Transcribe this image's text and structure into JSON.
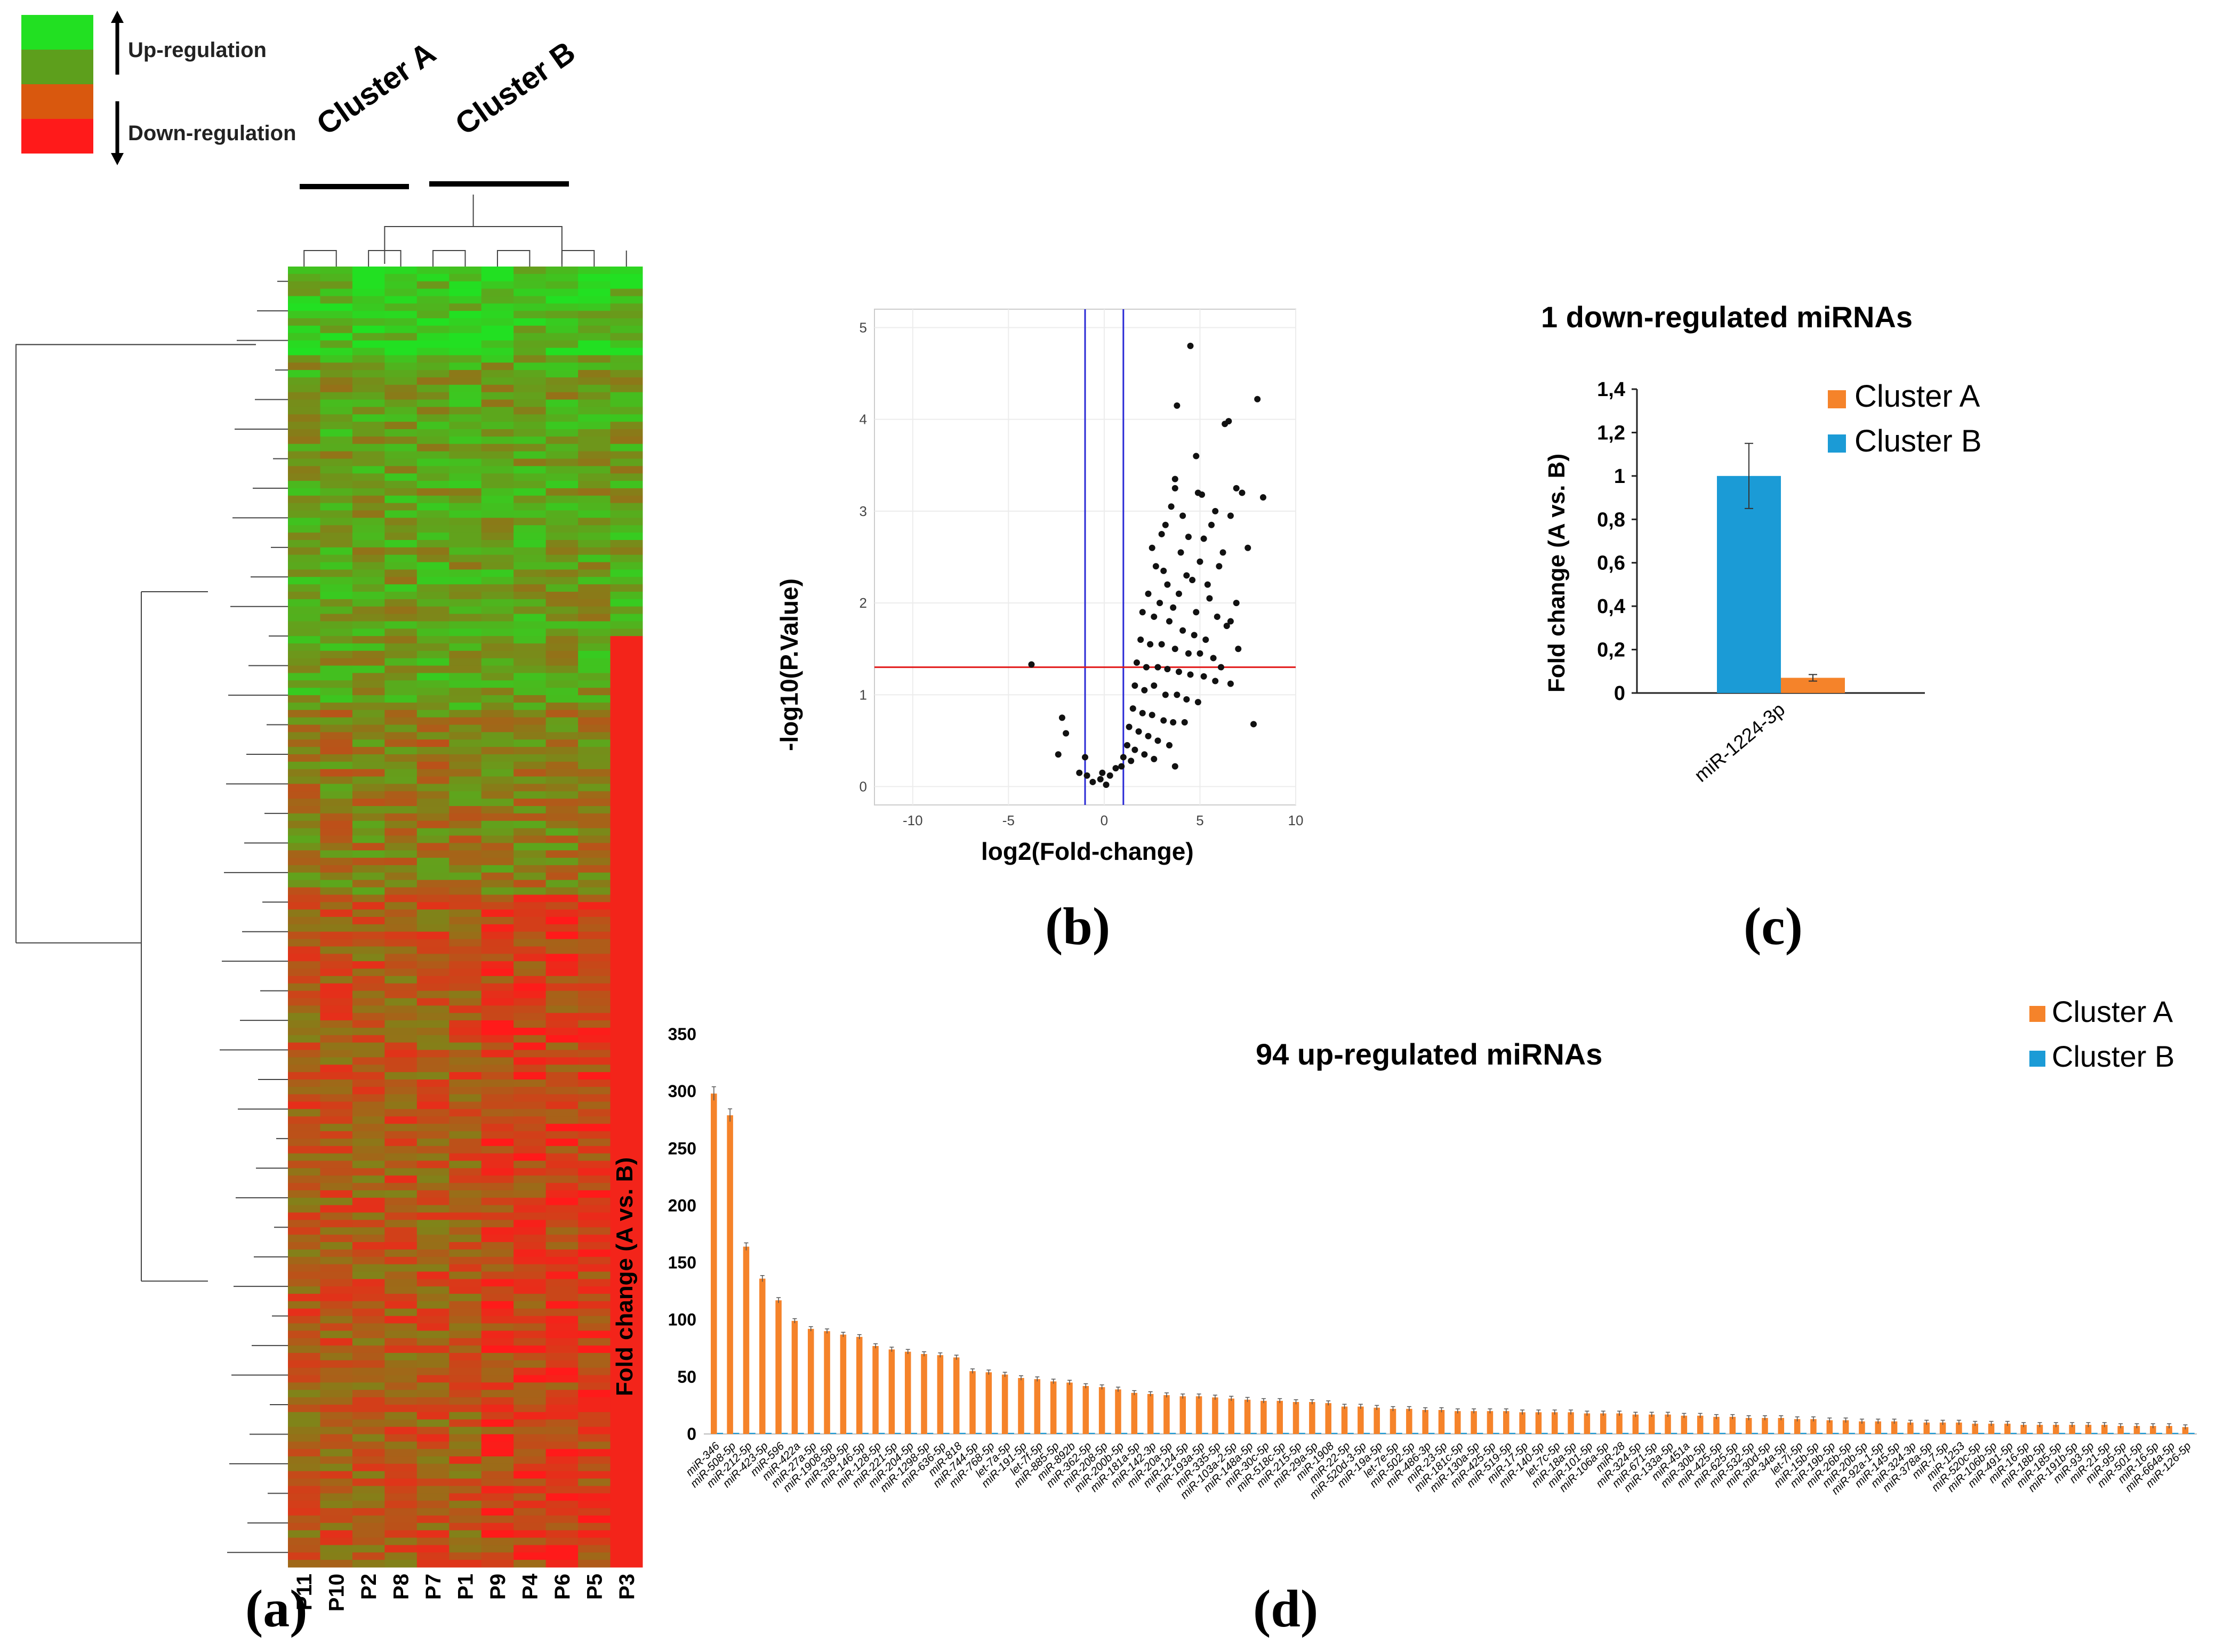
{
  "panel_labels": {
    "a": "(a)",
    "b": "(b)",
    "c": "(c)",
    "d": "(d)"
  },
  "heatmap_legend": {
    "up_label": "Up-regulation",
    "down_label": "Down-regulation",
    "colors": [
      "#22e022",
      "#5d9f1c",
      "#d9580e",
      "#ff1a1a"
    ]
  },
  "heatmap": {
    "cluster_labels": [
      "Cluster A",
      "Cluster B"
    ],
    "samples": [
      "P11",
      "P10",
      "P2",
      "P8",
      "P7",
      "P1",
      "P9",
      "P4",
      "P6",
      "P5",
      "P3"
    ],
    "row_count": 176,
    "colors": {
      "up": "#22e022",
      "mid": "#8a7a18",
      "down": "#ff1a1a"
    }
  },
  "colors": {
    "cluster_a": "#f5832a",
    "cluster_b": "#1b9bd6",
    "threshold_h": "#e21b1b",
    "threshold_v": "#2a2ad6",
    "points": "#111111"
  },
  "chart_data": [
    {
      "panel": "b",
      "type": "scatter",
      "title": "",
      "xlabel": "log2(Fold-change)",
      "ylabel": "-log10(P.Value)",
      "xlim": [
        -12,
        10
      ],
      "ylim": [
        -0.2,
        5.2
      ],
      "xticks": [
        -10,
        -5,
        0,
        5,
        10
      ],
      "yticks": [
        0,
        1,
        2,
        3,
        4,
        5
      ],
      "grid": true,
      "thresholds": {
        "x": [
          -1,
          1
        ],
        "y": 1.3
      },
      "points": [
        [
          4.5,
          4.8
        ],
        [
          8.0,
          4.22
        ],
        [
          6.5,
          3.98
        ],
        [
          6.3,
          3.95
        ],
        [
          3.8,
          4.15
        ],
        [
          4.8,
          3.6
        ],
        [
          3.7,
          3.35
        ],
        [
          3.7,
          3.25
        ],
        [
          4.9,
          3.2
        ],
        [
          5.1,
          3.18
        ],
        [
          7.2,
          3.2
        ],
        [
          8.3,
          3.15
        ],
        [
          6.9,
          3.25
        ],
        [
          3.5,
          3.05
        ],
        [
          4.1,
          2.95
        ],
        [
          5.8,
          3.0
        ],
        [
          6.6,
          2.95
        ],
        [
          7.5,
          2.6
        ],
        [
          6.2,
          2.55
        ],
        [
          3.2,
          2.85
        ],
        [
          4.4,
          2.72
        ],
        [
          5.2,
          2.7
        ],
        [
          6.0,
          2.4
        ],
        [
          4.0,
          2.55
        ],
        [
          2.5,
          2.6
        ],
        [
          3.1,
          2.35
        ],
        [
          4.6,
          2.25
        ],
        [
          5.4,
          2.2
        ],
        [
          6.9,
          2.0
        ],
        [
          2.7,
          2.4
        ],
        [
          3.3,
          2.2
        ],
        [
          3.9,
          2.1
        ],
        [
          4.3,
          2.3
        ],
        [
          5.5,
          2.05
        ],
        [
          2.3,
          2.1
        ],
        [
          2.9,
          2.0
        ],
        [
          3.6,
          1.95
        ],
        [
          4.8,
          1.9
        ],
        [
          5.9,
          1.85
        ],
        [
          6.4,
          1.75
        ],
        [
          6.6,
          1.8
        ],
        [
          7.0,
          1.5
        ],
        [
          2.0,
          1.9
        ],
        [
          2.6,
          1.85
        ],
        [
          3.4,
          1.8
        ],
        [
          4.1,
          1.7
        ],
        [
          4.7,
          1.65
        ],
        [
          5.3,
          1.6
        ],
        [
          1.9,
          1.6
        ],
        [
          2.4,
          1.55
        ],
        [
          3.0,
          1.55
        ],
        [
          3.7,
          1.5
        ],
        [
          4.4,
          1.45
        ],
        [
          5.0,
          1.45
        ],
        [
          5.7,
          1.4
        ],
        [
          6.1,
          1.3
        ],
        [
          1.7,
          1.35
        ],
        [
          2.2,
          1.3
        ],
        [
          2.8,
          1.3
        ],
        [
          3.3,
          1.28
        ],
        [
          3.9,
          1.25
        ],
        [
          4.5,
          1.22
        ],
        [
          5.2,
          1.2
        ],
        [
          5.8,
          1.15
        ],
        [
          1.6,
          1.1
        ],
        [
          2.1,
          1.05
        ],
        [
          2.6,
          1.1
        ],
        [
          3.2,
          1.0
        ],
        [
          3.8,
          1.0
        ],
        [
          4.3,
          0.95
        ],
        [
          4.9,
          0.92
        ],
        [
          1.5,
          0.85
        ],
        [
          2.0,
          0.8
        ],
        [
          2.5,
          0.78
        ],
        [
          3.1,
          0.72
        ],
        [
          3.6,
          0.7
        ],
        [
          4.2,
          0.7
        ],
        [
          1.3,
          0.65
        ],
        [
          1.8,
          0.6
        ],
        [
          2.3,
          0.55
        ],
        [
          2.8,
          0.5
        ],
        [
          3.4,
          0.45
        ],
        [
          1.2,
          0.45
        ],
        [
          1.6,
          0.4
        ],
        [
          2.1,
          0.35
        ],
        [
          1.0,
          0.32
        ],
        [
          1.4,
          0.28
        ],
        [
          0.9,
          0.22
        ],
        [
          2.6,
          0.3
        ],
        [
          3.7,
          0.22
        ],
        [
          6.6,
          1.12
        ],
        [
          7.8,
          0.68
        ],
        [
          -3.8,
          1.33
        ],
        [
          -2.2,
          0.75
        ],
        [
          -2.0,
          0.58
        ],
        [
          -2.4,
          0.35
        ],
        [
          -1.3,
          0.15
        ],
        [
          -1.0,
          0.32
        ],
        [
          -0.9,
          0.12
        ],
        [
          -0.6,
          0.05
        ],
        [
          -0.2,
          0.08
        ],
        [
          0.1,
          0.02
        ],
        [
          0.3,
          0.12
        ],
        [
          0.6,
          0.2
        ],
        [
          -0.1,
          0.15
        ],
        [
          5.0,
          2.45
        ],
        [
          5.6,
          2.85
        ],
        [
          3.0,
          2.75
        ]
      ]
    },
    {
      "panel": "c",
      "type": "bar",
      "title": "1 down-regulated miRNAs",
      "xlabel": "",
      "ylabel": "Fold change (A vs. B)",
      "ylim": [
        0,
        1.4
      ],
      "yticks": [
        "0",
        "0,2",
        "0,4",
        "0,6",
        "0,8",
        "1",
        "1,2",
        "1,4"
      ],
      "legend_position": "top-right",
      "categories": [
        "miR-1224-3p"
      ],
      "series": [
        {
          "name": "Cluster A",
          "values": [
            0.07
          ],
          "errors": [
            0.015
          ]
        },
        {
          "name": "Cluster B",
          "values": [
            1.0
          ],
          "errors": [
            0.15
          ]
        }
      ]
    },
    {
      "panel": "d",
      "type": "bar",
      "title": "94 up-regulated miRNAs",
      "xlabel": "",
      "ylabel": "Fold change (A vs. B)",
      "ylim": [
        0,
        350
      ],
      "yticks": [
        0,
        50,
        100,
        150,
        200,
        250,
        300,
        350
      ],
      "legend_position": "top-right",
      "categories": [
        "miR-346",
        "miR-508-5p",
        "miR-212-5p",
        "miR-423-5p",
        "miR-596",
        "miR-422a",
        "miR-27a-5p",
        "miR-1908-5p",
        "miR-339-5p",
        "miR-146-5p",
        "miR-128-5p",
        "miR-221-5p",
        "miR-204-5p",
        "miR-1298-5p",
        "miR-636-5p",
        "miR-818",
        "miR-744-5p",
        "miR-768-5p",
        "let-7a-5p",
        "miR-191-5p",
        "let-7f-5p",
        "miR-885-5p",
        "miR-892b",
        "miR-362-5p",
        "miR-208-5p",
        "miR-200b-5p",
        "miR-181a-5p",
        "miR-142-3p",
        "miR-20a-5p",
        "miR-124-5p",
        "miR-193a-5p",
        "miR-335-5p",
        "miR-103a-2-5p",
        "miR-148a-5p",
        "miR-30c-5p",
        "miR-518c-5p",
        "miR-215-5p",
        "miR-29a-5p",
        "miR-1908",
        "miR-22-5p",
        "miR-520d-3-5p",
        "miR-19a-5p",
        "let-7e-5p",
        "miR-502-5p",
        "miR-486-3p",
        "miR-23-5p",
        "miR-181c-5p",
        "miR-130a-5p",
        "miR-425-5p",
        "miR-519-5p",
        "miR-17-5p",
        "miR-140-5p",
        "let-7c-5p",
        "miR-18a-5p",
        "miR-101-5p",
        "miR-106a-5p",
        "miR-28",
        "miR-324-5p",
        "miR-671-5p",
        "miR-133a-5p",
        "miR-451a",
        "miR-30b-5p",
        "miR-425-5p",
        "miR-625-5p",
        "miR-532-5p",
        "miR-30d-5p",
        "miR-34a-5p",
        "let-7i-5p",
        "miR-15b-5p",
        "miR-19b-5p",
        "miR-26b-5p",
        "miR-20b-5p",
        "miR-92a-1-5p",
        "miR-145-5p",
        "miR-324-3p",
        "miR-378a-5p",
        "miR-7-5p",
        "miR-1253",
        "miR-520c-5p",
        "miR-106b-5p",
        "miR-491-5p",
        "miR-16-5p",
        "miR-18b-5p",
        "miR-185-5p",
        "miR-191b-5p",
        "miR-93-5p",
        "miR-21-5p",
        "miR-95-5p",
        "miR-501-5p",
        "miR-16-5p",
        "miR-664a-5p",
        "miR-126-5p"
      ],
      "series": [
        {
          "name": "Cluster A",
          "values": [
            298,
            279,
            164,
            136,
            117,
            99,
            92,
            90,
            87,
            85,
            77,
            74,
            72,
            70,
            69,
            67,
            55,
            54,
            52,
            49,
            48,
            46,
            45,
            42,
            41,
            39,
            36,
            35,
            34,
            33,
            33,
            32,
            31,
            30,
            29,
            29,
            28,
            28,
            27,
            24,
            24,
            23,
            22,
            22,
            21,
            21,
            20,
            20,
            20,
            20,
            19,
            19,
            19,
            19,
            18,
            18,
            18,
            17,
            17,
            17,
            16,
            16,
            15,
            15,
            14,
            14,
            14,
            13,
            13,
            12,
            12,
            11,
            11,
            11,
            10,
            10,
            10,
            10,
            9,
            9,
            9,
            8,
            8,
            8,
            8,
            8,
            8,
            7,
            7,
            7,
            7,
            6
          ]
        },
        {
          "name": "Cluster B",
          "values": [
            1,
            1,
            1,
            1,
            1,
            1,
            1,
            1,
            1,
            1,
            1,
            1,
            1,
            1,
            1,
            1,
            1,
            1,
            1,
            1,
            1,
            1,
            1,
            1,
            1,
            1,
            1,
            1,
            1,
            1,
            1,
            1,
            1,
            1,
            1,
            1,
            1,
            1,
            1,
            1,
            1,
            1,
            1,
            1,
            1,
            1,
            1,
            1,
            1,
            1,
            1,
            1,
            1,
            1,
            1,
            1,
            1,
            1,
            1,
            1,
            1,
            1,
            1,
            1,
            1,
            1,
            1,
            1,
            1,
            1,
            1,
            1,
            1,
            1,
            1,
            1,
            1,
            1,
            1,
            1,
            1,
            1,
            1,
            1,
            1,
            1,
            1,
            1,
            1,
            1,
            1,
            1
          ]
        }
      ]
    }
  ]
}
